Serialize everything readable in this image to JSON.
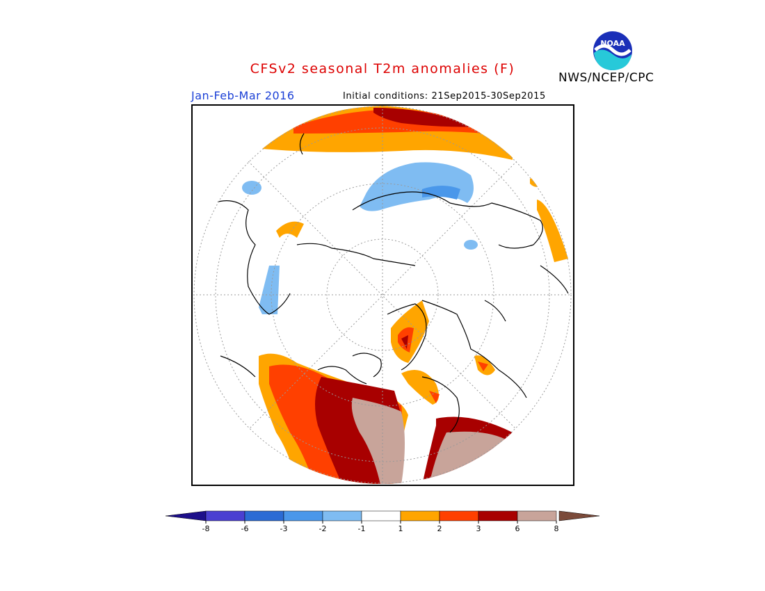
{
  "title": "CFSv2 seasonal T2m anomalies (F)",
  "agency": "NWS/NCEP/CPC",
  "logo_text": "NOAA",
  "season_label": "Jan-Feb-Mar 2016",
  "initial_conditions": "Initial conditions: 21Sep2015-30Sep2015",
  "colorbar": {
    "tick_labels": [
      "-8",
      "-6",
      "-3",
      "-2",
      "-1",
      "1",
      "2",
      "3",
      "6",
      "8"
    ],
    "colors": [
      "#1d0f8a",
      "#4a3fd1",
      "#2b6bd4",
      "#4a97ea",
      "#7fbcf2",
      "#ffffff",
      "#ffa500",
      "#ff4000",
      "#a80000",
      "#c8a49a",
      "#7b4a3a"
    ]
  }
}
